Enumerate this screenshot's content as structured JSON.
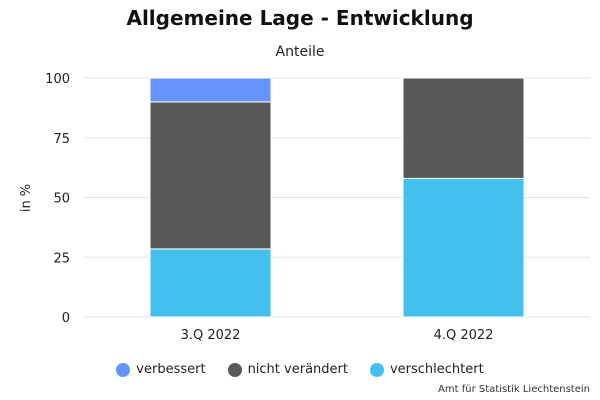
{
  "chart_data": {
    "type": "bar",
    "stacked": true,
    "title": "Allgemeine Lage - Entwicklung",
    "subtitle": "Anteile",
    "ylabel": "in %",
    "xlabel": "",
    "ylim": [
      0,
      100
    ],
    "yticks": [
      0,
      25,
      50,
      75,
      100
    ],
    "grid": true,
    "legend_position": "bottom",
    "categories": [
      "3.Q 2022",
      "4.Q 2022"
    ],
    "series": [
      {
        "name": "verschlechtert",
        "color": "#43C1EE",
        "values": [
          28.5,
          58
        ]
      },
      {
        "name": "nicht verändert",
        "color": "#58585A",
        "values": [
          61.5,
          42
        ]
      },
      {
        "name": "verbessert",
        "color": "#6495FF",
        "values": [
          10,
          0
        ]
      }
    ],
    "legend_order": [
      "verbessert",
      "nicht verändert",
      "verschlechtert"
    ]
  },
  "credit": "Amt für Statistik Liechtenstein"
}
